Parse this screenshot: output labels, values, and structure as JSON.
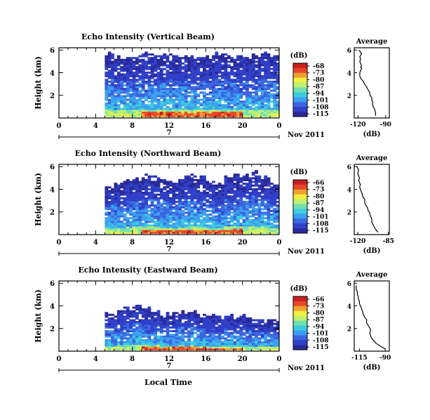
{
  "chart_data": [
    {
      "type": "heatmap",
      "title": "Echo Intensity (Vertical Beam)",
      "ylabel": "Height (km)",
      "xticks": [
        "0",
        "4",
        "8",
        "12",
        "16",
        "20",
        "0"
      ],
      "yticks": [
        "2",
        "4",
        "6"
      ],
      "xlim": [
        0,
        24
      ],
      "ylim": [
        0,
        6.2
      ],
      "date_label": "7",
      "date_suffix": "Nov 2011",
      "colorbar": {
        "title": "(dB)",
        "ticks": [
          "-68",
          "-73",
          "-80",
          "-87",
          "-94",
          "-101",
          "-108",
          "-115"
        ]
      },
      "top_km": [
        null,
        null,
        null,
        null,
        null,
        5.6,
        5.4,
        5.3,
        5.4,
        5.6,
        5.5,
        5.5,
        5.6,
        5.4,
        5.3,
        5.2,
        5.3,
        5.6,
        5.5,
        5.4,
        5.3,
        5.5,
        5.6,
        5.4
      ],
      "bottom_km": 4.0,
      "profile": {
        "title": "Average",
        "xlabel": "(dB)",
        "xticks": [
          "-120",
          "-90"
        ],
        "xlim": [
          -124,
          -86
        ],
        "yticks": [
          "2",
          "4",
          "6"
        ],
        "x": [
          -101,
          -101,
          -102,
          -104,
          -104,
          -105,
          -105,
          -107,
          -107,
          -109,
          -111,
          -113,
          -114,
          -117,
          -118,
          -118,
          -117,
          -116,
          -117,
          -116,
          -117,
          -118,
          -117,
          -118,
          -116,
          -119
        ],
        "y": [
          0.2,
          0.5,
          0.8,
          1.1,
          1.4,
          1.6,
          1.8,
          2.0,
          2.2,
          2.5,
          2.8,
          3.0,
          3.2,
          3.5,
          3.7,
          4.0,
          4.2,
          4.4,
          4.5,
          4.6,
          4.8,
          5.0,
          5.2,
          5.4,
          5.7,
          6.0
        ]
      }
    },
    {
      "type": "heatmap",
      "title": "Echo Intensity (Northward Beam)",
      "ylabel": "Height (km)",
      "xticks": [
        "0",
        "4",
        "8",
        "12",
        "16",
        "20",
        "0"
      ],
      "yticks": [
        "2",
        "4",
        "6"
      ],
      "xlim": [
        0,
        24
      ],
      "ylim": [
        0,
        6.2
      ],
      "date_label": "7",
      "date_suffix": "Nov 2011",
      "colorbar": {
        "title": "(dB)",
        "ticks": [
          "-66",
          "-73",
          "-80",
          "-87",
          "-94",
          "-101",
          "-108",
          "-115"
        ]
      },
      "top_km": [
        null,
        null,
        null,
        null,
        null,
        4.2,
        4.5,
        4.8,
        4.9,
        5.1,
        5.0,
        4.8,
        4.7,
        4.9,
        5.2,
        5.0,
        4.7,
        4.5,
        5.0,
        5.3,
        5.2,
        5.4,
        5.0,
        4.4
      ],
      "bottom_km": 4.2,
      "profile": {
        "title": "Average",
        "xlabel": "(dB)",
        "xticks": [
          "-120",
          "-85"
        ],
        "xlim": [
          -124,
          -84
        ],
        "yticks": [
          "2",
          "4",
          "6"
        ],
        "x": [
          -97,
          -100,
          -102,
          -104,
          -104,
          -106,
          -106,
          -108,
          -109,
          -111,
          -112,
          -112,
          -114,
          -115,
          -116,
          -117,
          -118,
          -117,
          -118,
          -119,
          -118,
          -119,
          -120,
          -119,
          -121
        ],
        "y": [
          0.2,
          0.5,
          0.8,
          1.1,
          1.4,
          1.7,
          1.9,
          2.1,
          2.4,
          2.6,
          2.8,
          3.1,
          3.3,
          3.6,
          3.8,
          4.0,
          4.2,
          4.4,
          4.6,
          4.8,
          5.0,
          5.2,
          5.4,
          5.7,
          6.0
        ]
      }
    },
    {
      "type": "heatmap",
      "title": "Echo Intensity (Eastward Beam)",
      "ylabel": "Height (km)",
      "xticks": [
        "0",
        "4",
        "8",
        "12",
        "16",
        "20",
        "0"
      ],
      "yticks": [
        "2",
        "4",
        "6"
      ],
      "xlim": [
        0,
        24
      ],
      "ylim": [
        0,
        6.2
      ],
      "date_label": "7",
      "date_suffix": "Nov 2011",
      "colorbar": {
        "title": "(dB)",
        "ticks": [
          "-66",
          "-73",
          "-80",
          "-87",
          "-94",
          "-101",
          "-108",
          "-115"
        ]
      },
      "top_km": [
        null,
        null,
        null,
        null,
        null,
        3.3,
        3.6,
        3.8,
        3.9,
        3.7,
        3.5,
        3.3,
        3.2,
        3.4,
        3.6,
        3.3,
        3.0,
        2.9,
        3.1,
        2.9,
        3.0,
        2.8,
        2.8,
        2.7
      ],
      "bottom_km": 4.4,
      "profile": {
        "title": "Average",
        "xlabel": "(dB)",
        "xticks": [
          "-115",
          "-90"
        ],
        "xlim": [
          -120,
          -86
        ],
        "yticks": [
          "2",
          "4",
          "6"
        ],
        "x": [
          -90,
          -94,
          -99,
          -102,
          -104,
          -105,
          -104,
          -106,
          -108,
          -108,
          -110,
          -111,
          -112,
          -113,
          -114,
          -115,
          -115,
          -116,
          -116,
          -117,
          -117,
          -118,
          -118
        ],
        "y": [
          0.2,
          0.4,
          0.7,
          1.0,
          1.3,
          1.6,
          1.9,
          2.2,
          2.5,
          2.8,
          3.0,
          3.2,
          3.5,
          3.8,
          4.0,
          4.2,
          4.4,
          4.6,
          4.8,
          5.0,
          5.2,
          5.5,
          5.8
        ]
      }
    }
  ],
  "xlabel": "Local Time",
  "colormap": [
    "#2a2a9a",
    "#3040c8",
    "#3c66e0",
    "#3ca0f0",
    "#3ccce0",
    "#70e0b0",
    "#c0f070",
    "#f0f040",
    "#f0a030",
    "#e84828",
    "#c82020"
  ]
}
